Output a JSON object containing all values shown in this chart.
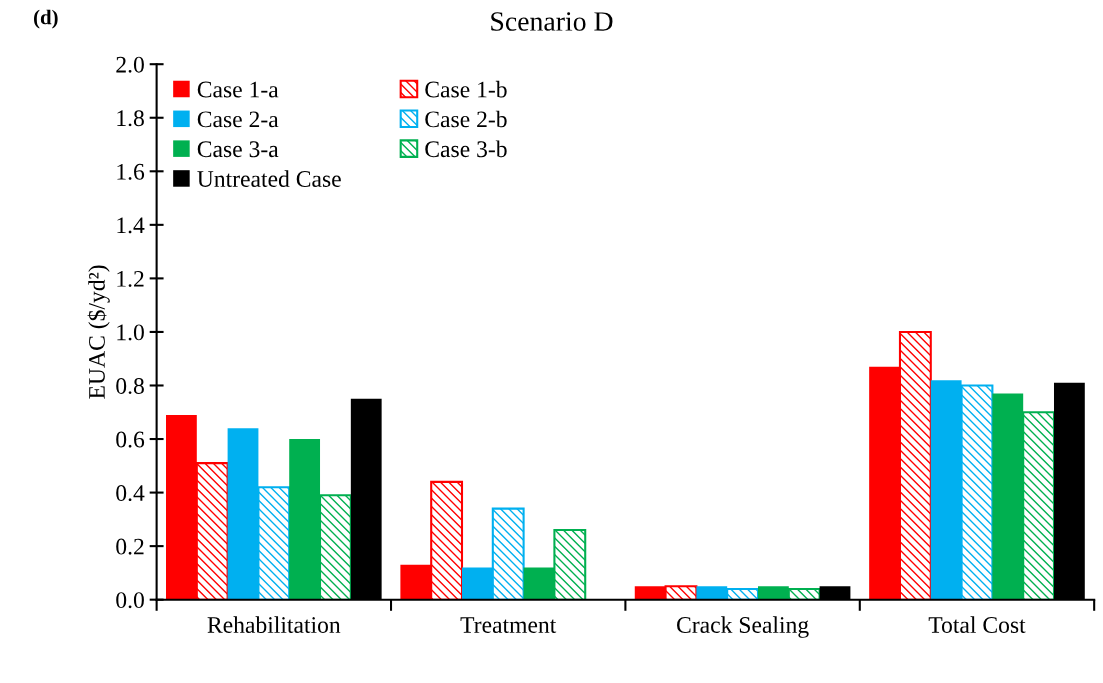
{
  "chart_data": {
    "type": "bar",
    "title": "Scenario D",
    "ylabel": "EUAC ($/yd²)",
    "annotations": [
      "(d)"
    ],
    "categories": [
      "Rehabilitation",
      "Treatment",
      "Crack Sealing",
      "Total Cost"
    ],
    "series": [
      {
        "name": "Case 1-a",
        "color": "#ff0000",
        "values": [
          0.69,
          0.13,
          0.05,
          0.87
        ]
      },
      {
        "name": "Case 1-b",
        "color": "#ff0000",
        "values": [
          0.51,
          0.44,
          0.05,
          1.0
        ]
      },
      {
        "name": "Case 2-a",
        "color": "#00b0f0",
        "values": [
          0.64,
          0.12,
          0.05,
          0.82
        ]
      },
      {
        "name": "Case 2-b",
        "color": "#00b0f0",
        "values": [
          0.42,
          0.34,
          0.04,
          0.8
        ]
      },
      {
        "name": "Case 3-a",
        "color": "#00b050",
        "values": [
          0.6,
          0.12,
          0.05,
          0.77
        ]
      },
      {
        "name": "Case 3-b",
        "color": "#00b050",
        "values": [
          0.39,
          0.26,
          0.04,
          0.7
        ]
      },
      {
        "name": "Untreated Case",
        "color": "#000000",
        "values": [
          0.75,
          null,
          0.05,
          0.81
        ]
      }
    ],
    "ylim": [
      0,
      2.0
    ],
    "yticks": [
      {
        "value": 0,
        "label": "0.0"
      },
      {
        "value": 0.2,
        "label": "0.2"
      },
      {
        "value": 0.4,
        "label": "0.4"
      },
      {
        "value": 0.6,
        "label": "0.6"
      },
      {
        "value": 0.8,
        "label": "0.8"
      },
      {
        "value": 1.0,
        "label": "1.0"
      },
      {
        "value": 1.2,
        "label": "1.2"
      },
      {
        "value": 1.4,
        "label": "1.4"
      },
      {
        "value": 1.6,
        "label": "1.6"
      },
      {
        "value": 1.8,
        "label": "1.8"
      },
      {
        "value": 2.0,
        "label": "2.0"
      }
    ],
    "grid": false,
    "legend": "top left"
  }
}
